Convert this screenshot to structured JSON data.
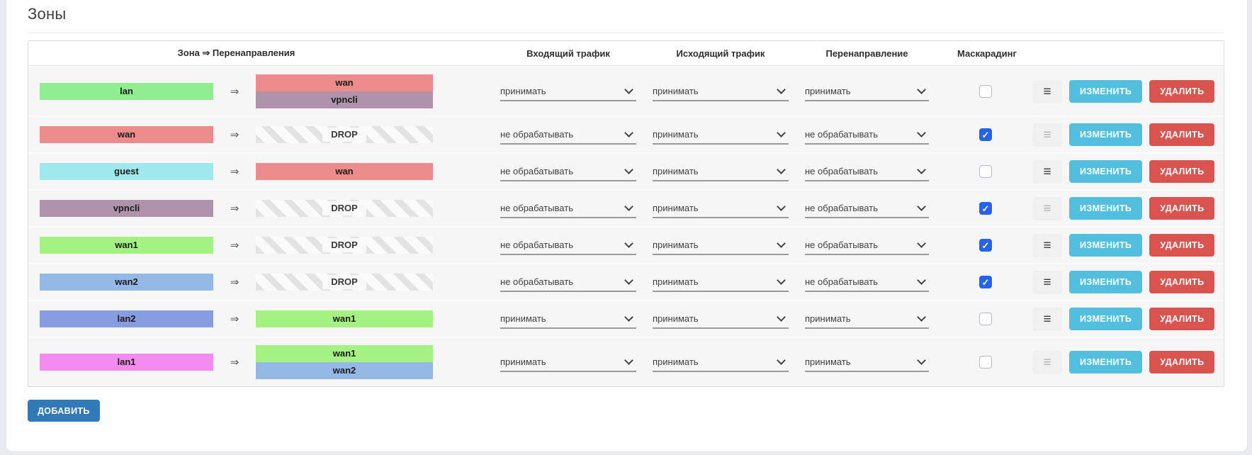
{
  "page": {
    "title": "Зоны"
  },
  "icons": {
    "forward_arrow": "⇒",
    "menu": "≡",
    "check": "✓"
  },
  "table": {
    "headers": {
      "zone_forwardings": "Зона ⇒ Перенаправления",
      "incoming": "Входящий трафик",
      "outgoing": "Исходящий трафик",
      "forwarding": "Перенаправление",
      "masquerading": "Маскарадинг"
    },
    "drop_label": "DROP",
    "actions": {
      "edit_label": "ИЗМЕНИТЬ",
      "delete_label": "УДАЛИТЬ"
    },
    "rows": [
      {
        "zone": {
          "name": "lan",
          "color": "#90ee90"
        },
        "drop": false,
        "destinations": [
          {
            "name": "wan",
            "color": "#ec8b8b"
          },
          {
            "name": "vpncli",
            "color": "#af93aa"
          }
        ],
        "incoming": "принимать",
        "outgoing": "принимать",
        "forwarding": "принимать",
        "masquerading": false,
        "menu_enabled": true
      },
      {
        "zone": {
          "name": "wan",
          "color": "#ec8b8b"
        },
        "drop": true,
        "destinations": [],
        "incoming": "не обрабатывать",
        "outgoing": "принимать",
        "forwarding": "не обрабатывать",
        "masquerading": true,
        "menu_enabled": false
      },
      {
        "zone": {
          "name": "guest",
          "color": "#9fe8ed"
        },
        "drop": false,
        "destinations": [
          {
            "name": "wan",
            "color": "#ec8b8b"
          }
        ],
        "incoming": "не обрабатывать",
        "outgoing": "принимать",
        "forwarding": "не обрабатывать",
        "masquerading": false,
        "menu_enabled": true
      },
      {
        "zone": {
          "name": "vpncli",
          "color": "#af93aa"
        },
        "drop": true,
        "destinations": [],
        "incoming": "не обрабатывать",
        "outgoing": "принимать",
        "forwarding": "не обрабатывать",
        "masquerading": true,
        "menu_enabled": false
      },
      {
        "zone": {
          "name": "wan1",
          "color": "#a5f284"
        },
        "drop": true,
        "destinations": [],
        "incoming": "не обрабатывать",
        "outgoing": "принимать",
        "forwarding": "не обрабатывать",
        "masquerading": true,
        "menu_enabled": true
      },
      {
        "zone": {
          "name": "wan2",
          "color": "#95b9e6"
        },
        "drop": true,
        "destinations": [],
        "incoming": "не обрабатывать",
        "outgoing": "принимать",
        "forwarding": "не обрабатывать",
        "masquerading": true,
        "menu_enabled": true
      },
      {
        "zone": {
          "name": "lan2",
          "color": "#879de0"
        },
        "drop": false,
        "destinations": [
          {
            "name": "wan1",
            "color": "#a5f284"
          }
        ],
        "incoming": "принимать",
        "outgoing": "принимать",
        "forwarding": "принимать",
        "masquerading": false,
        "menu_enabled": true
      },
      {
        "zone": {
          "name": "lan1",
          "color": "#f48cf0"
        },
        "drop": false,
        "destinations": [
          {
            "name": "wan1",
            "color": "#a5f284"
          },
          {
            "name": "wan2",
            "color": "#95b9e6"
          }
        ],
        "incoming": "принимать",
        "outgoing": "принимать",
        "forwarding": "принимать",
        "masquerading": false,
        "menu_enabled": false
      }
    ]
  },
  "footer": {
    "add_label": "ДОБАВИТЬ"
  },
  "colors": {
    "edit_button": "#53bfdf",
    "delete_button": "#d9534f",
    "add_button": "#3279b7",
    "checkbox_checked": "#2463eb"
  }
}
